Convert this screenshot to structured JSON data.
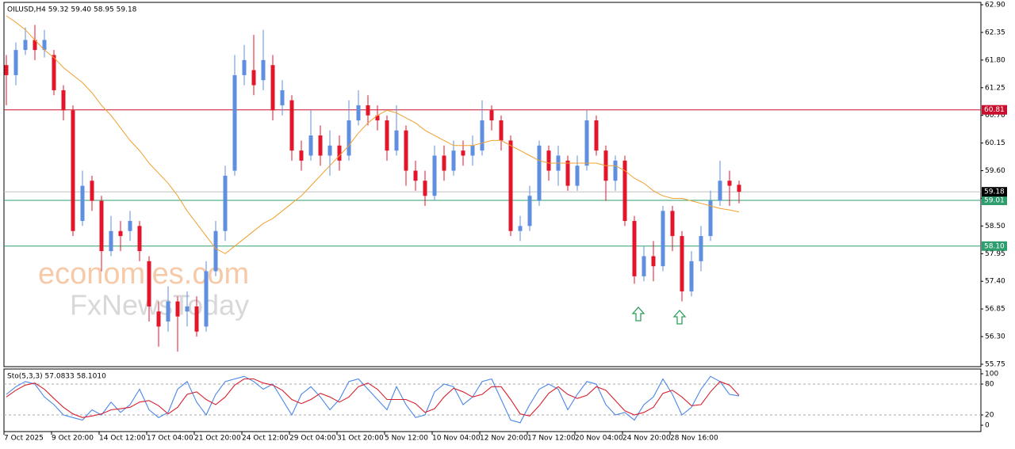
{
  "chart_data": {
    "type": "candlestick",
    "title": "OILUSD,H4  59.32 59.40 58.95 59.18",
    "watermark": [
      "economies.com",
      "FxNewsToday"
    ],
    "categories": [
      "7 Oct 2025",
      null,
      null,
      null,
      null,
      "9 Oct 20:00",
      null,
      null,
      null,
      null,
      "14 Oct 12:00",
      null,
      null,
      null,
      null,
      "17 Oct 04:00",
      null,
      null,
      null,
      null,
      "21 Oct 20:00",
      null,
      null,
      null,
      null,
      "24 Oct 12:00",
      null,
      null,
      null,
      null,
      "29 Oct 04:00",
      null,
      null,
      null,
      null,
      "31 Oct 20:00",
      null,
      null,
      null,
      null,
      "5 Nov 12:00",
      null,
      null,
      null,
      null,
      "10 Nov 04:00",
      null,
      null,
      null,
      null,
      "12 Nov 20:00",
      null,
      null,
      null,
      null,
      "17 Nov 12:00",
      null,
      null,
      null,
      null,
      "20 Nov 04:00",
      null,
      null,
      null,
      null,
      "24 Nov 20:00",
      null,
      null,
      null,
      null,
      "28 Nov 16:00",
      null,
      null,
      null,
      null,
      null,
      null,
      null
    ],
    "open": [
      61.7,
      61.5,
      62.0,
      62.2,
      62.0,
      61.9,
      61.2,
      60.8,
      58.6,
      59.4,
      59.0,
      58.0,
      58.4,
      58.4,
      58.5,
      57.8,
      56.8,
      56.6,
      57.0,
      56.8,
      56.9,
      56.5,
      57.6,
      58.4,
      59.6,
      61.5,
      61.6,
      61.4,
      61.7,
      60.9,
      61.0,
      60.0,
      59.9,
      60.3,
      59.9,
      60.1,
      59.9,
      60.6,
      60.9,
      60.7,
      60.6,
      60.0,
      60.4,
      59.6,
      59.4,
      59.1,
      59.9,
      59.6,
      60.0,
      59.9,
      60.0,
      60.8,
      60.6,
      60.2,
      58.4,
      58.5,
      59.0,
      60.0,
      59.6,
      59.8,
      59.3,
      59.7,
      60.6,
      60.0,
      59.4,
      59.8,
      58.6,
      57.5,
      57.9,
      57.7,
      58.8,
      58.3,
      57.2,
      57.8,
      58.3,
      59.0,
      59.4,
      59.32
    ],
    "high": [
      61.9,
      62.15,
      62.45,
      62.5,
      62.4,
      62.0,
      61.3,
      60.9,
      59.6,
      59.5,
      59.1,
      58.7,
      58.6,
      58.8,
      58.6,
      57.9,
      57.0,
      57.3,
      57.1,
      57.2,
      57.1,
      57.8,
      58.6,
      59.7,
      61.9,
      62.1,
      62.3,
      62.4,
      61.9,
      61.4,
      61.1,
      60.2,
      60.8,
      60.5,
      60.4,
      60.3,
      61.0,
      61.2,
      61.1,
      60.9,
      60.7,
      60.9,
      60.5,
      59.8,
      59.6,
      60.1,
      60.1,
      60.2,
      60.2,
      60.3,
      61.0,
      60.9,
      60.7,
      60.3,
      58.7,
      59.3,
      60.2,
      60.1,
      60.1,
      59.9,
      59.9,
      60.8,
      60.7,
      60.1,
      59.9,
      59.9,
      58.7,
      58.1,
      58.2,
      58.9,
      58.9,
      58.4,
      58.0,
      58.5,
      59.2,
      59.8,
      59.6,
      59.4
    ],
    "low": [
      60.9,
      61.3,
      61.9,
      61.8,
      61.85,
      61.1,
      60.6,
      58.3,
      58.5,
      58.8,
      57.6,
      57.9,
      58.0,
      58.2,
      57.8,
      56.6,
      56.1,
      56.4,
      56.0,
      56.5,
      56.3,
      56.4,
      57.5,
      58.2,
      59.5,
      61.3,
      61.1,
      61.2,
      60.6,
      60.7,
      59.8,
      59.6,
      59.8,
      59.7,
      59.5,
      59.6,
      59.8,
      60.5,
      60.5,
      60.4,
      59.8,
      59.9,
      59.3,
      59.2,
      58.9,
      59.0,
      59.4,
      59.5,
      59.7,
      59.7,
      59.9,
      60.4,
      60.0,
      58.3,
      58.2,
      58.4,
      58.9,
      59.4,
      59.3,
      59.2,
      59.2,
      59.6,
      59.9,
      59.0,
      59.2,
      58.5,
      57.35,
      57.4,
      57.4,
      57.6,
      58.0,
      57.0,
      57.1,
      57.6,
      58.2,
      58.9,
      58.9,
      58.95
    ],
    "close": [
      61.5,
      62.0,
      62.2,
      62.0,
      62.2,
      61.2,
      60.8,
      58.4,
      59.3,
      59.0,
      58.0,
      58.4,
      58.3,
      58.6,
      58.0,
      56.9,
      56.5,
      57.0,
      56.7,
      56.9,
      56.4,
      57.6,
      58.4,
      59.5,
      61.5,
      61.8,
      61.3,
      61.8,
      60.8,
      61.2,
      60.0,
      59.8,
      60.3,
      59.9,
      60.1,
      59.8,
      60.6,
      60.9,
      60.7,
      60.6,
      60.0,
      60.4,
      59.6,
      59.4,
      59.1,
      59.9,
      59.6,
      60.0,
      59.9,
      60.1,
      60.6,
      60.6,
      60.2,
      58.4,
      58.5,
      59.1,
      60.1,
      59.6,
      59.9,
      59.3,
      59.7,
      60.6,
      60.0,
      59.4,
      59.8,
      58.6,
      57.5,
      57.9,
      57.7,
      58.8,
      58.3,
      57.2,
      57.8,
      58.3,
      59.0,
      59.4,
      59.3,
      59.18
    ],
    "up_color": "#5f8fe0",
    "down_color": "#e3152b",
    "ma": {
      "color": "#f0a030",
      "values": [
        62.68,
        62.55,
        62.4,
        62.2,
        62.0,
        61.85,
        61.65,
        61.5,
        61.35,
        61.15,
        60.9,
        60.7,
        60.45,
        60.2,
        60.0,
        59.75,
        59.55,
        59.35,
        59.1,
        58.8,
        58.55,
        58.3,
        58.05,
        57.95,
        58.1,
        58.25,
        58.4,
        58.55,
        58.65,
        58.8,
        58.95,
        59.1,
        59.3,
        59.5,
        59.7,
        59.9,
        60.1,
        60.35,
        60.55,
        60.7,
        60.8,
        60.75,
        60.65,
        60.55,
        60.4,
        60.3,
        60.2,
        60.1,
        60.1,
        60.1,
        60.15,
        60.2,
        60.2,
        60.1,
        60.0,
        59.9,
        59.8,
        59.75,
        59.75,
        59.75,
        59.75,
        59.75,
        59.75,
        59.7,
        59.7,
        59.6,
        59.45,
        59.35,
        59.2,
        59.1,
        59.05,
        59.05,
        59.0,
        58.95,
        58.9,
        58.85,
        58.82,
        58.78
      ]
    },
    "ylim": [
      55.75,
      62.9
    ],
    "yticks": [
      {
        "value": 62.9,
        "label": "62.90"
      },
      {
        "value": 62.35,
        "label": "62.35"
      },
      {
        "value": 61.8,
        "label": "61.80"
      },
      {
        "value": 61.25,
        "label": "61.25"
      },
      {
        "value": 60.7,
        "label": "60.70"
      },
      {
        "value": 60.15,
        "label": "60.15"
      },
      {
        "value": 59.6,
        "label": "59.60"
      },
      {
        "value": 59.05,
        "label": "59.05"
      },
      {
        "value": 58.5,
        "label": "58.50"
      },
      {
        "value": 57.95,
        "label": "57.95"
      },
      {
        "value": 57.4,
        "label": "57.40"
      },
      {
        "value": 56.85,
        "label": "56.85"
      },
      {
        "value": 56.3,
        "label": "56.30"
      },
      {
        "value": 55.75,
        "label": "55.75"
      }
    ],
    "levels": [
      {
        "value": 60.81,
        "color": "#c8102e"
      },
      {
        "value": 59.01,
        "color": "#2e9e6e"
      },
      {
        "value": 58.1,
        "label": "58.10",
        "color": "#2e9e6e"
      }
    ],
    "last_price_color": "#000000",
    "stochastic": {
      "label": "Sto(5,3,3) 57.0833 58.1010",
      "ylim": [
        0,
        100
      ],
      "yticks": [
        0,
        20,
        80,
        100
      ],
      "levels": [
        20,
        80
      ],
      "series": [
        {
          "color": "#4a86e8",
          "values": [
            60,
            75,
            85,
            80,
            55,
            40,
            20,
            15,
            10,
            30,
            20,
            45,
            25,
            40,
            70,
            30,
            15,
            25,
            70,
            85,
            45,
            20,
            60,
            85,
            90,
            95,
            85,
            70,
            80,
            50,
            20,
            60,
            75,
            55,
            30,
            50,
            85,
            90,
            70,
            50,
            30,
            75,
            40,
            15,
            20,
            65,
            80,
            75,
            40,
            55,
            85,
            90,
            50,
            10,
            5,
            40,
            70,
            80,
            70,
            30,
            60,
            85,
            80,
            40,
            20,
            25,
            10,
            40,
            55,
            90,
            60,
            20,
            35,
            70,
            95,
            85,
            60,
            57
          ]
        },
        {
          "color": "#d6202f",
          "values": [
            55,
            68,
            78,
            82,
            70,
            52,
            35,
            22,
            15,
            18,
            22,
            30,
            32,
            35,
            45,
            48,
            38,
            22,
            35,
            60,
            65,
            50,
            40,
            55,
            78,
            90,
            90,
            82,
            78,
            68,
            50,
            42,
            50,
            62,
            55,
            45,
            55,
            75,
            82,
            70,
            50,
            50,
            50,
            42,
            25,
            32,
            55,
            72,
            65,
            55,
            60,
            75,
            75,
            50,
            22,
            18,
            38,
            62,
            75,
            60,
            52,
            58,
            75,
            68,
            48,
            28,
            20,
            25,
            35,
            62,
            68,
            55,
            38,
            40,
            65,
            85,
            78,
            58
          ]
        }
      ]
    }
  }
}
